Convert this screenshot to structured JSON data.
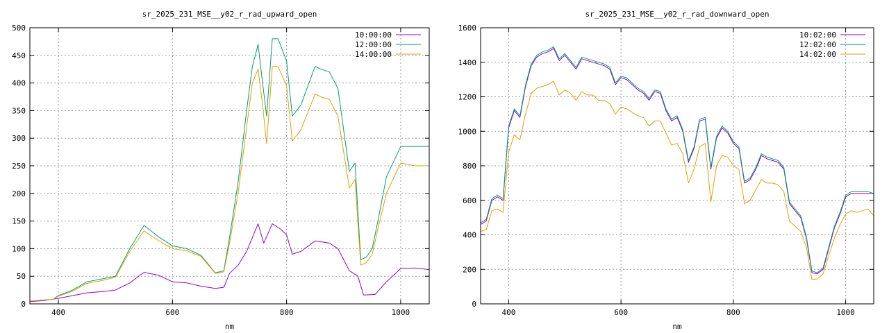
{
  "chart_data": [
    {
      "type": "line",
      "title": "sr_2025_231_MSE__y02_r_rad_upward_open",
      "xlabel": "nm",
      "ylabel": "",
      "xlim": [
        350,
        1050
      ],
      "ylim": [
        0,
        500
      ],
      "xticks": [
        400,
        600,
        800,
        1000
      ],
      "yticks": [
        0,
        50,
        100,
        150,
        200,
        250,
        300,
        350,
        400,
        450,
        500
      ],
      "grid": true,
      "legend_position": "top-right",
      "series": [
        {
          "name": "10:00:00",
          "color": "#9400d3",
          "x": [
            350,
            375,
            400,
            425,
            450,
            475,
            500,
            525,
            550,
            575,
            600,
            625,
            650,
            675,
            690,
            700,
            715,
            730,
            750,
            760,
            775,
            790,
            800,
            810,
            825,
            850,
            875,
            890,
            910,
            925,
            935,
            955,
            975,
            1000,
            1025,
            1050
          ],
          "y": [
            4,
            6,
            10,
            15,
            20,
            22,
            25,
            38,
            57,
            52,
            40,
            38,
            32,
            28,
            30,
            55,
            70,
            95,
            145,
            110,
            145,
            135,
            125,
            90,
            95,
            114,
            110,
            100,
            60,
            50,
            16,
            17,
            40,
            64,
            65,
            62
          ]
        },
        {
          "name": "12:00:00",
          "color": "#009e73",
          "x": [
            350,
            375,
            390,
            400,
            425,
            450,
            475,
            500,
            525,
            550,
            575,
            600,
            625,
            650,
            675,
            690,
            700,
            715,
            730,
            740,
            750,
            758,
            765,
            775,
            785,
            800,
            810,
            825,
            850,
            860,
            875,
            890,
            910,
            920,
            930,
            940,
            950,
            960,
            975,
            1000,
            1025,
            1050
          ],
          "y": [
            5,
            7,
            8,
            15,
            25,
            40,
            45,
            50,
            100,
            142,
            122,
            105,
            100,
            88,
            56,
            60,
            120,
            220,
            350,
            430,
            470,
            400,
            340,
            480,
            480,
            440,
            340,
            360,
            430,
            425,
            420,
            390,
            240,
            255,
            80,
            85,
            100,
            150,
            230,
            285,
            285,
            285
          ]
        },
        {
          "name": "14:00:00",
          "color": "#e69f00",
          "x": [
            350,
            375,
            390,
            400,
            425,
            450,
            475,
            500,
            525,
            550,
            575,
            600,
            625,
            650,
            675,
            690,
            700,
            715,
            730,
            740,
            750,
            758,
            765,
            775,
            785,
            800,
            810,
            825,
            850,
            860,
            875,
            890,
            910,
            920,
            930,
            940,
            950,
            960,
            975,
            1000,
            1025,
            1050
          ],
          "y": [
            5,
            7,
            8,
            14,
            23,
            37,
            42,
            48,
            95,
            132,
            115,
            100,
            96,
            86,
            55,
            58,
            110,
            200,
            320,
            400,
            425,
            360,
            290,
            430,
            430,
            395,
            295,
            315,
            380,
            375,
            370,
            340,
            210,
            225,
            70,
            75,
            90,
            135,
            200,
            255,
            250,
            250
          ]
        }
      ]
    },
    {
      "type": "line",
      "title": "sr_2025_231_MSE__y02_r_rad_downward_open",
      "xlabel": "nm",
      "ylabel": "",
      "xlim": [
        350,
        1050
      ],
      "ylim": [
        0,
        1600
      ],
      "xticks": [
        400,
        600,
        800,
        1000
      ],
      "yticks": [
        0,
        200,
        400,
        600,
        800,
        1000,
        1200,
        1400,
        1600
      ],
      "grid": true,
      "legend_position": "top-right",
      "series": [
        {
          "name": "10:02:00",
          "color": "#9400d3",
          "x": [
            350,
            360,
            370,
            380,
            390,
            400,
            410,
            420,
            430,
            440,
            450,
            460,
            470,
            480,
            490,
            500,
            510,
            520,
            530,
            540,
            550,
            560,
            570,
            580,
            590,
            600,
            610,
            620,
            630,
            640,
            650,
            660,
            670,
            680,
            690,
            700,
            710,
            720,
            730,
            740,
            750,
            760,
            770,
            780,
            790,
            800,
            810,
            820,
            830,
            840,
            850,
            860,
            870,
            880,
            890,
            900,
            910,
            920,
            930,
            940,
            950,
            960,
            970,
            980,
            990,
            1000,
            1010,
            1020,
            1030,
            1040,
            1050
          ],
          "y": [
            460,
            480,
            600,
            620,
            600,
            1020,
            1120,
            1080,
            1260,
            1380,
            1430,
            1450,
            1460,
            1480,
            1410,
            1440,
            1400,
            1360,
            1420,
            1410,
            1400,
            1390,
            1380,
            1360,
            1270,
            1310,
            1300,
            1270,
            1240,
            1220,
            1180,
            1230,
            1220,
            1120,
            1060,
            1080,
            1000,
            820,
            900,
            1060,
            1070,
            780,
            960,
            1020,
            990,
            930,
            900,
            700,
            720,
            780,
            860,
            840,
            830,
            820,
            780,
            580,
            540,
            500,
            380,
            180,
            175,
            200,
            320,
            440,
            520,
            620,
            640,
            640,
            640,
            640,
            640
          ]
        },
        {
          "name": "12:02:00",
          "color": "#009e73",
          "x": [
            350,
            360,
            370,
            380,
            390,
            400,
            410,
            420,
            430,
            440,
            450,
            460,
            470,
            480,
            490,
            500,
            510,
            520,
            530,
            540,
            550,
            560,
            570,
            580,
            590,
            600,
            610,
            620,
            630,
            640,
            650,
            660,
            670,
            680,
            690,
            700,
            710,
            720,
            730,
            740,
            750,
            760,
            770,
            780,
            790,
            800,
            810,
            820,
            830,
            840,
            850,
            860,
            870,
            880,
            890,
            900,
            910,
            920,
            930,
            940,
            950,
            960,
            970,
            980,
            990,
            1000,
            1010,
            1020,
            1030,
            1040,
            1050
          ],
          "y": [
            470,
            490,
            610,
            630,
            610,
            1030,
            1130,
            1090,
            1270,
            1390,
            1440,
            1460,
            1470,
            1490,
            1420,
            1450,
            1410,
            1370,
            1430,
            1420,
            1410,
            1400,
            1390,
            1370,
            1280,
            1320,
            1310,
            1280,
            1250,
            1230,
            1190,
            1240,
            1230,
            1130,
            1070,
            1090,
            1010,
            830,
            910,
            1070,
            1080,
            790,
            970,
            1030,
            1000,
            940,
            910,
            710,
            730,
            790,
            870,
            850,
            840,
            830,
            790,
            590,
            550,
            510,
            390,
            190,
            180,
            210,
            330,
            450,
            530,
            630,
            650,
            650,
            650,
            650,
            640
          ]
        },
        {
          "name": "14:02:00",
          "color": "#e69f00",
          "x": [
            350,
            360,
            370,
            380,
            390,
            400,
            410,
            420,
            430,
            440,
            450,
            460,
            470,
            480,
            490,
            500,
            510,
            520,
            530,
            540,
            550,
            560,
            570,
            580,
            590,
            600,
            610,
            620,
            630,
            640,
            650,
            660,
            670,
            680,
            690,
            700,
            710,
            720,
            730,
            740,
            750,
            760,
            770,
            780,
            790,
            800,
            810,
            820,
            830,
            840,
            850,
            860,
            870,
            880,
            890,
            900,
            910,
            920,
            930,
            940,
            950,
            960,
            970,
            980,
            990,
            1000,
            1010,
            1020,
            1030,
            1040,
            1050
          ],
          "y": [
            420,
            430,
            540,
            550,
            530,
            880,
            980,
            950,
            1100,
            1220,
            1250,
            1260,
            1270,
            1290,
            1210,
            1240,
            1220,
            1180,
            1230,
            1210,
            1210,
            1180,
            1180,
            1160,
            1100,
            1140,
            1130,
            1110,
            1090,
            1080,
            1030,
            1060,
            1060,
            990,
            920,
            930,
            870,
            700,
            780,
            910,
            930,
            590,
            800,
            860,
            850,
            800,
            780,
            580,
            600,
            660,
            720,
            700,
            700,
            690,
            650,
            480,
            450,
            420,
            330,
            140,
            145,
            175,
            280,
            380,
            460,
            520,
            540,
            530,
            540,
            550,
            510
          ]
        }
      ]
    }
  ]
}
